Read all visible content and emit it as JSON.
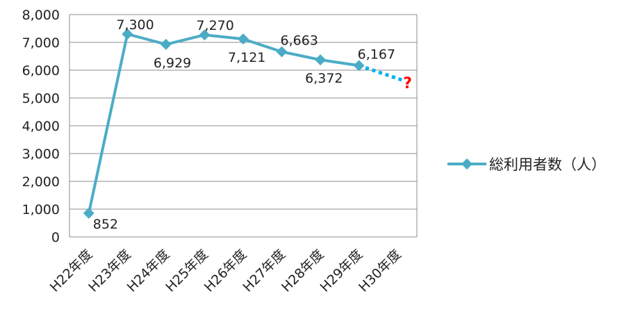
{
  "chart_data": {
    "type": "line",
    "categories": [
      "H22年度",
      "H23年度",
      "H24年度",
      "H25年度",
      "H26年度",
      "H27年度",
      "H28年度",
      "H29年度",
      "H30年度"
    ],
    "series": [
      {
        "name": "総利用者数（人）",
        "values": [
          852,
          7300,
          6929,
          7270,
          7121,
          6663,
          6372,
          6167,
          null
        ],
        "data_labels": [
          "852",
          "7,300",
          "6,929",
          "7,270",
          "7,121",
          "6,663",
          "6,372",
          "6,167"
        ],
        "color": "#4bacc6"
      }
    ],
    "projection": {
      "from_category": "H29年度",
      "to_category": "H30年度",
      "from_value": 6167,
      "to_value": 5600,
      "style": "dotted",
      "color": "#00b0f0",
      "marker_text": "?",
      "marker_color": "#ff0000"
    },
    "yticks": [
      "0",
      "1,000",
      "2,000",
      "3,000",
      "4,000",
      "5,000",
      "6,000",
      "7,000",
      "8,000"
    ],
    "ylim": [
      0,
      8000
    ],
    "grid": true,
    "legend": "right"
  }
}
